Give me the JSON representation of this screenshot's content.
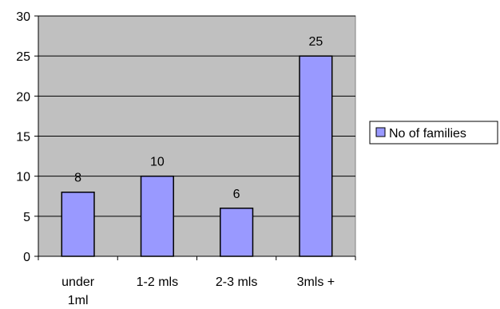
{
  "chart_data": {
    "type": "bar",
    "categories": [
      [
        "under",
        "1ml"
      ],
      [
        "1-2 mls"
      ],
      [
        "2-3 mls"
      ],
      [
        "3mls +"
      ]
    ],
    "series": [
      {
        "name": "No of families",
        "values": [
          8,
          10,
          6,
          25
        ]
      }
    ],
    "data_labels": [
      "8",
      "10",
      "6",
      "25"
    ],
    "y_ticks": [
      "0",
      "5",
      "10",
      "15",
      "20",
      "25",
      "30"
    ],
    "ylim": [
      0,
      30
    ],
    "yticks_step": 5,
    "grid": true,
    "legend": "right",
    "colors": {
      "plot_bg": "#c0c0c0",
      "bar": "#9999ff",
      "bar_stroke": "#000000",
      "grid": "#000000"
    }
  }
}
